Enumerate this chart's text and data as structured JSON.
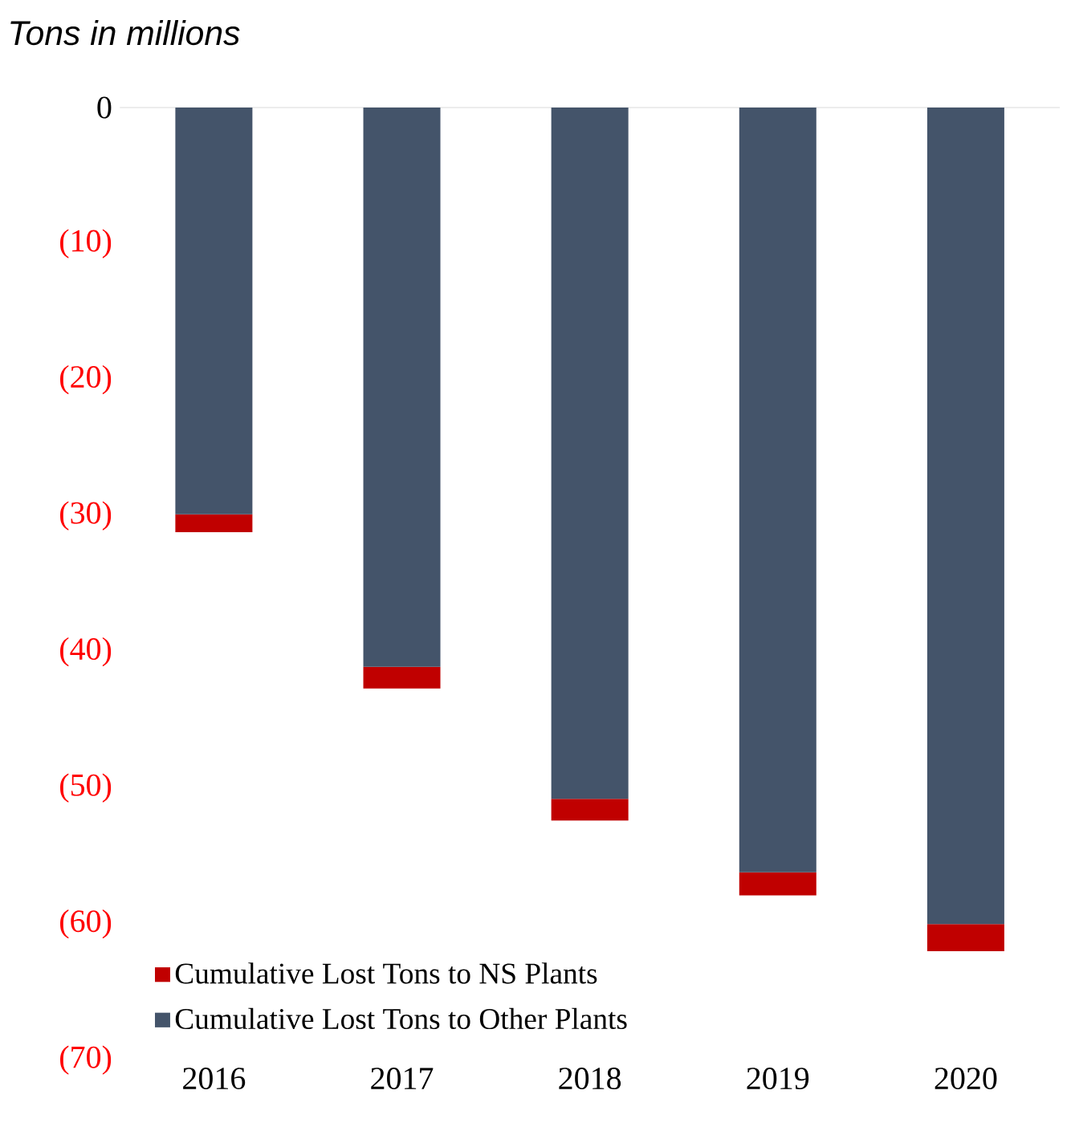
{
  "chart_data": {
    "type": "bar",
    "subtitle": "Tons in millions",
    "categories": [
      "2016",
      "2017",
      "2018",
      "2019",
      "2020"
    ],
    "stacked": true,
    "series": [
      {
        "name": "Cumulative Lost Tons to Other Plants",
        "color": "#44546a",
        "values": [
          -29.9,
          -41.1,
          -50.8,
          -56.2,
          -60.0
        ]
      },
      {
        "name": "Cumulative Lost Tons to NS Plants",
        "color": "#c00000",
        "values": [
          -1.3,
          -1.6,
          -1.6,
          -1.7,
          -2.0
        ]
      }
    ],
    "ylim": [
      -70,
      0
    ],
    "yticks": [
      0,
      {
        "value": -10,
        "label": "(10)"
      },
      {
        "value": -20,
        "label": "(20)"
      },
      {
        "value": -30,
        "label": "(30)"
      },
      {
        "value": -40,
        "label": "(40)"
      },
      {
        "value": -50,
        "label": "(50)"
      },
      {
        "value": -60,
        "label": "(60)"
      },
      {
        "value": -70,
        "label": "(70)"
      }
    ],
    "legend": "bottom left",
    "grid": false
  }
}
